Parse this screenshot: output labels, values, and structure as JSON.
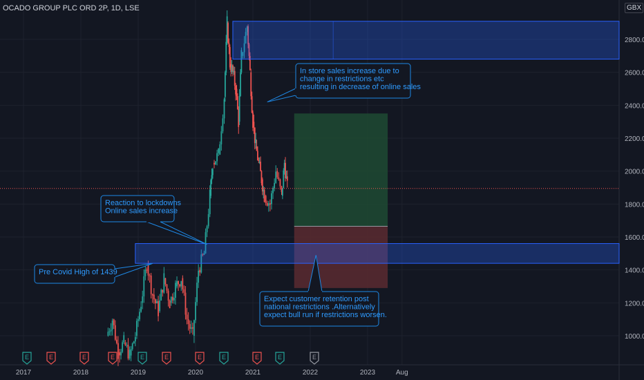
{
  "header": {
    "title": "OCADO GROUP PLC ORD 2P, 1D, LSE",
    "currency": "GBX"
  },
  "colors": {
    "background": "#131722",
    "grid": "#1e222d",
    "axis_text": "#b2b5be",
    "candle_up": "#26a69a",
    "candle_down": "#ef5350",
    "zone_fill": "#2962ff",
    "callout_text": "#2f9bff",
    "target_fill": "#1e4a33",
    "stop_fill": "#5a2a30",
    "earnings_green": "#26a69a",
    "earnings_red": "#ef5350"
  },
  "chart_data": {
    "type": "candlestick",
    "title": "OCADO GROUP PLC ORD 2P, 1D, LSE",
    "xlabel": "",
    "ylabel": "",
    "xlim": [
      2016.9,
      2024.15
    ],
    "ylim": [
      850,
      2950
    ],
    "y_ticks": [
      "1000.0",
      "1200.0",
      "1400.0",
      "1600.0",
      "1800.0",
      "2000.0",
      "2200.0",
      "2400.0",
      "2600.0",
      "2800.0"
    ],
    "x_ticks": [
      "2017",
      "2018",
      "2019",
      "2020",
      "2021",
      "2022",
      "2023",
      "Aug"
    ],
    "x_tick_positions": [
      2017,
      2018,
      2019,
      2020,
      2021,
      2022,
      2023,
      2023.6
    ],
    "grid": true,
    "last_price_line": 1895,
    "series": [
      {
        "x": [
          2018.45,
          2018.55,
          2018.65,
          2018.75,
          2018.85,
          2018.95,
          2019.05,
          2019.15,
          2019.25,
          2019.35,
          2019.45,
          2019.55,
          2019.65,
          2019.75,
          2019.85,
          2019.95,
          2020.05,
          2020.15,
          2020.25,
          2020.3,
          2020.4,
          2020.5,
          2020.55,
          2020.6,
          2020.65,
          2020.7,
          2020.75,
          2020.8,
          2020.9,
          2020.95,
          2021.0,
          2021.05,
          2021.1,
          2021.15,
          2021.2,
          2021.3,
          2021.4,
          2021.5,
          2021.55,
          2021.6
        ],
        "values": [
          1000,
          1100,
          900,
          960,
          880,
          1000,
          1200,
          1439,
          1250,
          1150,
          1350,
          1200,
          1300,
          1350,
          1100,
          1000,
          1400,
          1500,
          1850,
          2050,
          2100,
          2450,
          2900,
          2650,
          2600,
          2500,
          2300,
          2700,
          2880,
          2600,
          2300,
          2150,
          2050,
          1950,
          1850,
          1800,
          2000,
          1850,
          2050,
          1900
        ]
      }
    ],
    "zones": [
      {
        "from": 2680,
        "to": 2910,
        "x_start": 2020.65
      },
      {
        "from": 1440,
        "to": 1560,
        "x_start": 2018.95
      }
    ],
    "annotations": [
      {
        "text": [
          "In store sales increase due to",
          "change in restrictions etc",
          "resulting in decrease of online sales"
        ]
      },
      {
        "text": [
          "Reaction to lockdowns",
          "Online sales increase"
        ]
      },
      {
        "text": [
          "Pre Covid High of 1439"
        ]
      },
      {
        "text": [
          "Expect customer retention post",
          "national restrictions .Alternatively",
          "expect bull run if restrictions worsen."
        ]
      }
    ],
    "earnings_markers": [
      {
        "label": "E",
        "color": "green"
      },
      {
        "label": "E",
        "color": "red"
      },
      {
        "label": "E",
        "color": "red"
      },
      {
        "label": "E",
        "color": "red"
      },
      {
        "label": "E",
        "color": "green"
      },
      {
        "label": "E",
        "color": "red"
      },
      {
        "label": "E",
        "color": "red"
      },
      {
        "label": "E",
        "color": "green"
      },
      {
        "label": "E",
        "color": "red"
      },
      {
        "label": "E",
        "color": "green"
      },
      {
        "label": "E",
        "color": "gray"
      }
    ]
  }
}
